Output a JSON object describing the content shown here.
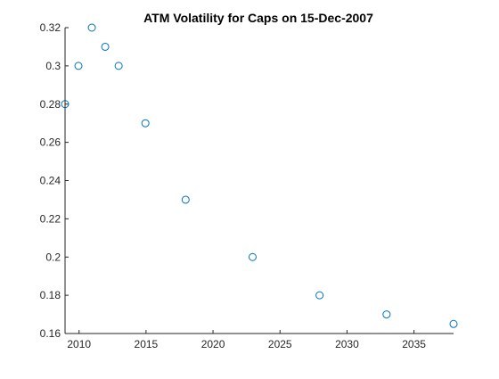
{
  "chart_data": {
    "type": "scatter",
    "title": "ATM Volatility for Caps on 15-Dec-2007",
    "xlabel": "",
    "ylabel": "",
    "x_dates": [
      "15-Dec-2008",
      "15-Dec-2009",
      "15-Dec-2010",
      "15-Dec-2011",
      "15-Dec-2012",
      "15-Dec-2014",
      "15-Dec-2017",
      "15-Dec-2022",
      "15-Dec-2027",
      "15-Dec-2032",
      "15-Dec-2037"
    ],
    "y": [
      0.28,
      0.3,
      0.32,
      0.31,
      0.3,
      0.27,
      0.23,
      0.2,
      0.18,
      0.17,
      0.165
    ],
    "xlim": [
      "15-Dec-2008",
      "15-Dec-2037"
    ],
    "ylim": [
      0.16,
      0.32
    ],
    "xticks": [
      2010,
      2015,
      2020,
      2025,
      2030,
      2035
    ],
    "xtick_labels": [
      "2010",
      "2015",
      "2020",
      "2025",
      "2030",
      "2035"
    ],
    "yticks": [
      0.16,
      0.18,
      0.2,
      0.22,
      0.24,
      0.26,
      0.28,
      0.3,
      0.32
    ],
    "ytick_labels": [
      "0.16",
      "0.18",
      "0.2",
      "0.22",
      "0.24",
      "0.26",
      "0.28",
      "0.3",
      "0.32"
    ],
    "grid": false,
    "marker": "open-circle",
    "marker_color": "#0072BD",
    "axis_color": "#262626"
  }
}
